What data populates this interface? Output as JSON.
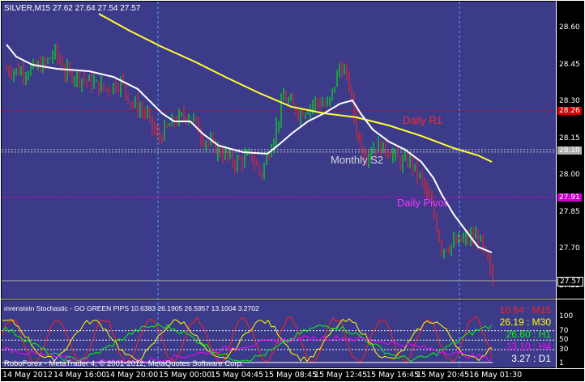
{
  "window": {
    "symbol_header": "SILVER,M15  27.62 27.64 27.54 27.57",
    "broker_footer": "RoboForex - MetaTrader 4, © 2001-2012, MetaQuotes Software Corp."
  },
  "main_chart": {
    "price_labels": [
      "28.60",
      "28.45",
      "28.30",
      "28.15",
      "28.00",
      "27.85",
      "27.70",
      "27.55"
    ],
    "price_values": [
      28.6,
      28.45,
      28.3,
      28.15,
      28.0,
      27.85,
      27.7,
      27.55
    ],
    "level_tags": [
      {
        "text": "28.26",
        "value": 28.26,
        "bg": "#cc0000",
        "fg": "#ffffff"
      },
      {
        "text": "28.10",
        "value": 28.1,
        "bg": "#b0b0b0",
        "fg": "#ffffff"
      },
      {
        "text": "27.91",
        "value": 27.91,
        "bg": "#cc00cc",
        "fg": "#ffffff"
      },
      {
        "text": "27.57",
        "value": 27.57,
        "bg": "#000000",
        "fg": "#ffffff"
      }
    ],
    "annotations": {
      "daily_r1": "Daily R1",
      "monthly_s2": "Monthly S2",
      "daily_pivot": "Daily Pivot"
    }
  },
  "stochastic_panel": {
    "title": "mrenstein Stochastic - GO GREEN PIPS 10.6383 26.1905 26.5957 13.1004 3.2702",
    "scale_labels": [
      "100",
      "70",
      "50",
      "30",
      "1"
    ],
    "readouts": [
      {
        "text": "10.64 : M15",
        "color": "#ff2020"
      },
      {
        "text": "26.19 : M30",
        "color": "#ffff00"
      },
      {
        "text": "26.60 : H1",
        "color": "#00ff00"
      },
      {
        "text": "13.10 : H4",
        "color": "#ff00ff"
      },
      {
        "text": "3.27 : D1",
        "color": "#ffffff"
      }
    ]
  },
  "time_axis": [
    "14 May 2012",
    "14 May 16:00",
    "14 May 20:00",
    "15 May 00:00",
    "15 May 04:45",
    "15 May 08:45",
    "15 May 12:45",
    "15 May 16:45",
    "15 May 20:45",
    "16 May 01:30"
  ],
  "colors": {
    "background": "#3b3b8a",
    "bull_candle": "#00ff00",
    "bear_candle": "#ff2020",
    "ma_slow": "#ffff33",
    "ma_fast": "#ffffff",
    "r1_line": "#cc0000",
    "pivot_line": "#cc00cc",
    "s2_line": "#c0c0c0"
  }
}
